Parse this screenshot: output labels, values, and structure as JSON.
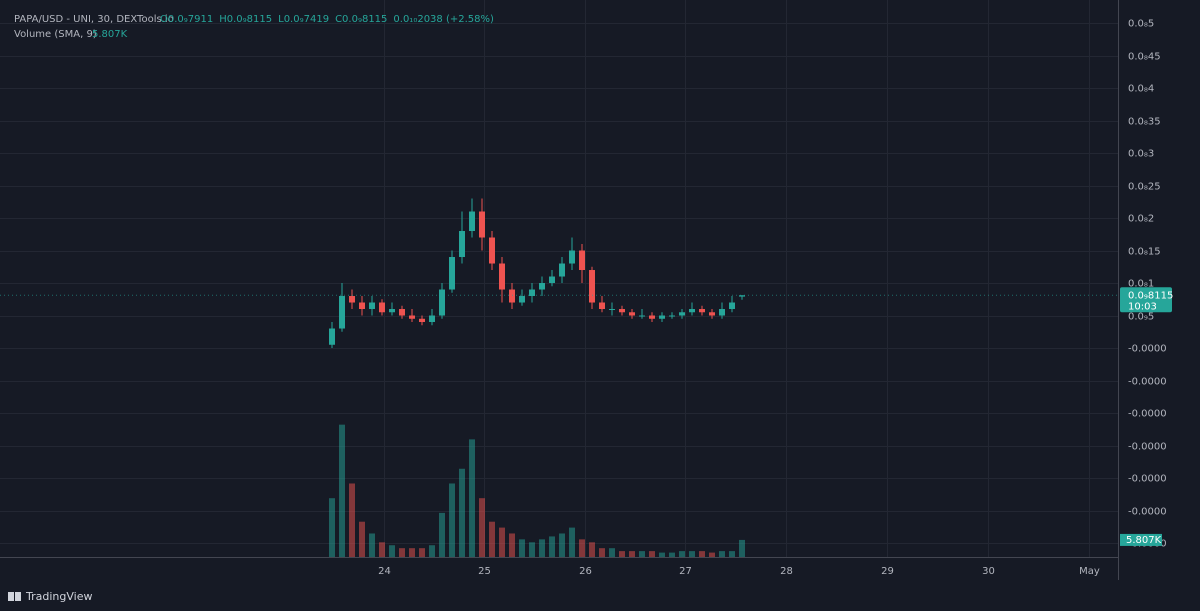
{
  "chart_data": {
    "type": "candlestick",
    "title": "PAPA/USD - UNI, 30, DEXTools.io",
    "ohlc_labels": [
      "O0.0₉7911",
      "H0.0₉8115",
      "L0.0₉7419",
      "C0.0₉8115",
      "0.0₁₀2038 (+2.58%)"
    ],
    "volume_title": "Volume (SMA, 9)",
    "volume_value_label": "5.807K",
    "last_price_label": "0.0₉8115",
    "countdown": "10:03",
    "brand": "TradingView",
    "up_color": "#26a69a",
    "down_color": "#ef5350",
    "open": [
      5e-11,
      3e-10,
      8e-10,
      7e-10,
      6e-10,
      7e-10,
      5.5e-10,
      6e-10,
      5e-10,
      4.5e-10,
      4e-10,
      5e-10,
      9e-10,
      1.4e-09,
      1.8e-09,
      2.1e-09,
      1.7e-09,
      1.3e-09,
      9e-10,
      7e-10,
      8e-10,
      9e-10,
      1e-09,
      1.1e-09,
      1.3e-09,
      1.5e-09,
      1.2e-09,
      7e-10,
      6e-10,
      6e-10,
      5.5e-10,
      5e-10,
      5e-10,
      4.5e-10,
      5e-10,
      5e-10,
      5.5e-10,
      6e-10,
      5.5e-10,
      5e-10,
      6e-10,
      7.911e-10
    ],
    "high": [
      4e-10,
      1e-09,
      9e-10,
      8e-10,
      8e-10,
      7.5e-10,
      7e-10,
      6.5e-10,
      6e-10,
      5e-10,
      6e-10,
      1e-09,
      1.5e-09,
      2.1e-09,
      2.3e-09,
      2.3e-09,
      1.8e-09,
      1.4e-09,
      1e-09,
      9e-10,
      1e-09,
      1.1e-09,
      1.2e-09,
      1.4e-09,
      1.7e-09,
      1.6e-09,
      1.25e-09,
      8e-10,
      7e-10,
      6.5e-10,
      6e-10,
      6e-10,
      5.5e-10,
      5.5e-10,
      5.5e-10,
      6e-10,
      7e-10,
      6.5e-10,
      6e-10,
      7e-10,
      8e-10,
      8.115e-10
    ],
    "low": [
      0,
      2.5e-10,
      6e-10,
      5e-10,
      5e-10,
      5e-10,
      5e-10,
      4.5e-10,
      4e-10,
      3.5e-10,
      3.5e-10,
      4.5e-10,
      8.5e-10,
      1.3e-09,
      1.7e-09,
      1.5e-09,
      1.2e-09,
      7e-10,
      6e-10,
      6.5e-10,
      7e-10,
      8e-10,
      9.5e-10,
      1e-09,
      1.2e-09,
      1e-09,
      6e-10,
      5.5e-10,
      5e-10,
      5e-10,
      4.5e-10,
      4.5e-10,
      4e-10,
      4e-10,
      4.5e-10,
      4.5e-10,
      5e-10,
      5e-10,
      4.5e-10,
      4.5e-10,
      5.5e-10,
      7.419e-10
    ],
    "close": [
      3e-10,
      8e-10,
      7e-10,
      6e-10,
      7e-10,
      5.5e-10,
      6e-10,
      5e-10,
      4.5e-10,
      4e-10,
      5e-10,
      9e-10,
      1.4e-09,
      1.8e-09,
      2.1e-09,
      1.7e-09,
      1.3e-09,
      9e-10,
      7e-10,
      8e-10,
      9e-10,
      1e-09,
      1.1e-09,
      1.3e-09,
      1.5e-09,
      1.2e-09,
      7e-10,
      6e-10,
      6e-10,
      5.5e-10,
      5e-10,
      5e-10,
      4.5e-10,
      5e-10,
      5e-10,
      5.5e-10,
      6e-10,
      5.5e-10,
      5e-10,
      6e-10,
      7e-10,
      8.115e-10
    ],
    "volume": [
      20,
      45,
      25,
      12,
      8,
      5,
      4,
      3,
      3,
      3,
      4,
      15,
      25,
      30,
      40,
      20,
      12,
      10,
      8,
      6,
      5,
      6,
      7,
      8,
      10,
      6,
      5,
      3,
      3,
      2,
      2,
      2,
      2,
      1.5,
      1.5,
      2,
      2,
      2,
      1.5,
      2,
      2,
      5.807
    ],
    "volume_lim": [
      0,
      186
    ],
    "ylim": [
      -3.215e-09,
      5.2e-09
    ],
    "yticks": [
      {
        "value": 5e-09,
        "label": "0.0₈5"
      },
      {
        "value": 4.5e-09,
        "label": "0.0₈45"
      },
      {
        "value": 4e-09,
        "label": "0.0₈4"
      },
      {
        "value": 3.5e-09,
        "label": "0.0₈35"
      },
      {
        "value": 3e-09,
        "label": "0.0₈3"
      },
      {
        "value": 2.5e-09,
        "label": "0.0₈25"
      },
      {
        "value": 2e-09,
        "label": "0.0₈2"
      },
      {
        "value": 1.5e-09,
        "label": "0.0₈15"
      },
      {
        "value": 1e-09,
        "label": "0.0₈1"
      },
      {
        "value": 5e-10,
        "label": "0.0₉5"
      },
      {
        "value": 0,
        "label": "-0.0000"
      },
      {
        "value": -5e-10,
        "label": "-0.0000"
      },
      {
        "value": -1e-09,
        "label": "-0.0000"
      },
      {
        "value": -1.5e-09,
        "label": "-0.0000"
      },
      {
        "value": -2e-09,
        "label": "-0.0000"
      },
      {
        "value": -2.5e-09,
        "label": "-0.0000"
      },
      {
        "value": -3e-09,
        "label": "-0.0000"
      }
    ],
    "xlim": [
      -32.2,
      78.6
    ],
    "xticks": [
      {
        "value": 5.2,
        "label": "24"
      },
      {
        "value": 15.2,
        "label": "25"
      },
      {
        "value": 25.3,
        "label": "26"
      },
      {
        "value": 35.3,
        "label": "27"
      },
      {
        "value": 45.4,
        "label": "28"
      },
      {
        "value": 55.5,
        "label": "29"
      },
      {
        "value": 65.6,
        "label": "30"
      },
      {
        "value": 75.7,
        "label": "May"
      }
    ],
    "grid": true
  }
}
